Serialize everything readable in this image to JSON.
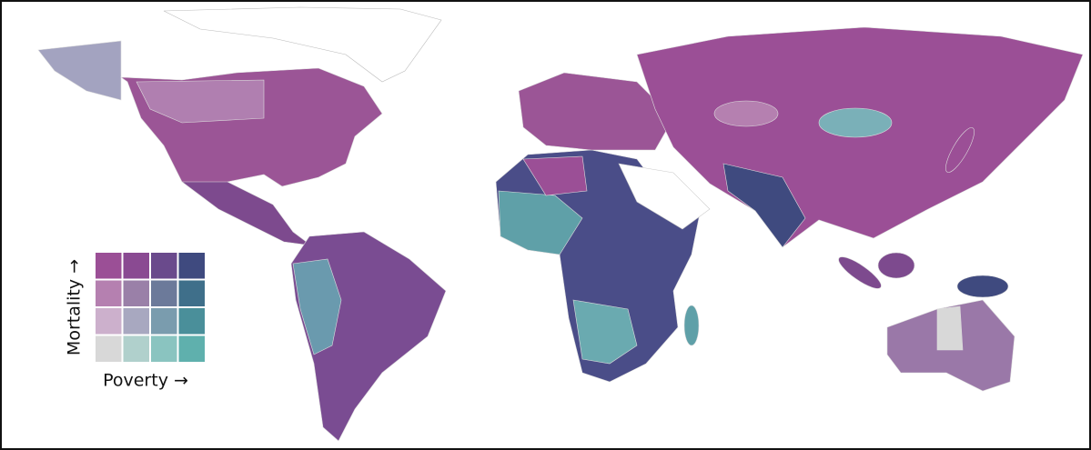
{
  "legend": {
    "y_label": "Mortality →",
    "x_label": "Poverty →",
    "colors": [
      [
        "#9b4f96",
        "#8a4a92",
        "#6a4a8c",
        "#3f4a7f"
      ],
      [
        "#b580b0",
        "#9a80a8",
        "#6c7a9a",
        "#3f6f8a"
      ],
      [
        "#ccb0cc",
        "#a8a8c0",
        "#7a9cae",
        "#4a8f9a"
      ],
      [
        "#d8d8d8",
        "#b0d0cc",
        "#8ac4c0",
        "#5fb0ad"
      ]
    ]
  }
}
